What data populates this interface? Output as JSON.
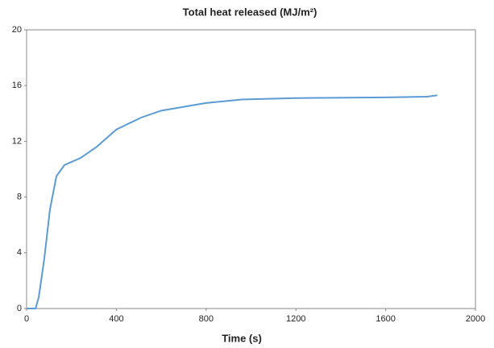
{
  "chart_data": {
    "type": "line",
    "title": "Total heat released  (MJ/m²)",
    "x_label": "Time (s)",
    "x": [
      0,
      40,
      54,
      79,
      104,
      133,
      169,
      240,
      312,
      400,
      510,
      600,
      800,
      960,
      1200,
      1600,
      1785,
      1830
    ],
    "series": [
      {
        "name": "Total heat released",
        "color": "#5b9bd5",
        "values": [
          0,
          0,
          0.8,
          3.6,
          7.1,
          9.5,
          10.3,
          10.8,
          11.6,
          12.85,
          13.7,
          14.2,
          14.75,
          15.0,
          15.1,
          15.15,
          15.2,
          15.3
        ]
      }
    ],
    "xlim": [
      0,
      2000
    ],
    "xticks": [
      0,
      400,
      800,
      1200,
      1600,
      2000
    ],
    "ylim": [
      0,
      20
    ],
    "yticks": [
      0,
      4,
      8,
      12,
      16,
      20
    ],
    "grid": false
  }
}
